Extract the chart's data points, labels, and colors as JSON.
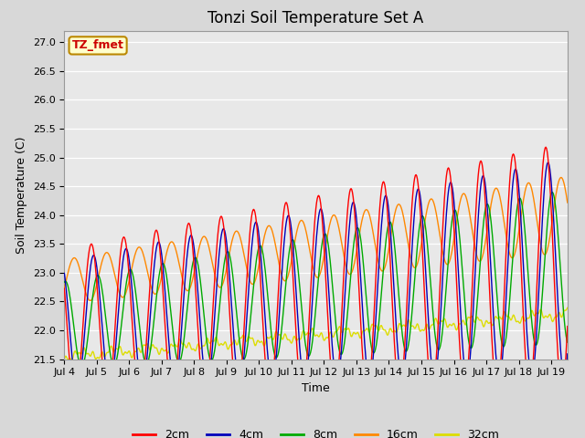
{
  "title": "Tonzi Soil Temperature Set A",
  "xlabel": "Time",
  "ylabel": "Soil Temperature (C)",
  "ylim": [
    21.5,
    27.2
  ],
  "xlim_days": [
    0,
    15.5
  ],
  "annotation": "TZ_fmet",
  "legend_labels": [
    "2cm",
    "4cm",
    "8cm",
    "16cm",
    "32cm"
  ],
  "legend_colors": [
    "#ff0000",
    "#0000bb",
    "#00aa00",
    "#ff8800",
    "#dddd00"
  ],
  "xtick_labels": [
    "Jul 4",
    "Jul 5",
    "Jul 6",
    "Jul 7",
    "Jul 8",
    "Jul 9",
    "Jul 10",
    "Jul 11",
    "Jul 12",
    "Jul 13",
    "Jul 14",
    "Jul 15",
    "Jul 16",
    "Jul 17",
    "Jul 18",
    "Jul 19"
  ],
  "xtick_positions": [
    0,
    1,
    2,
    3,
    4,
    5,
    6,
    7,
    8,
    9,
    10,
    11,
    12,
    13,
    14,
    15
  ],
  "background_color": "#d8d8d8",
  "plot_bg_color": "#e8e8e8",
  "line_width": 1.0,
  "title_fontsize": 12,
  "axis_fontsize": 9,
  "tick_fontsize": 8
}
